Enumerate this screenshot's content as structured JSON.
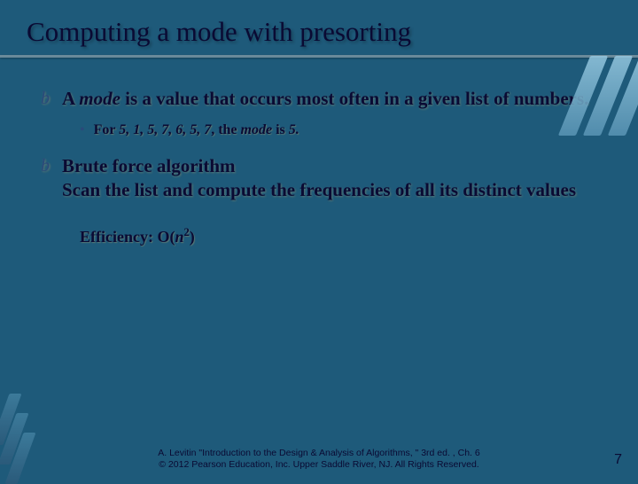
{
  "colors": {
    "background": "#1e5a7a",
    "text": "#0a0a33",
    "accent": "#6a8a9a",
    "deco_light": "#95c8e0",
    "deco_dark": "#2a5a7a"
  },
  "title": "Computing a mode with presorting",
  "bullets": [
    {
      "text_pre": "A ",
      "text_em": "mode",
      "text_post": " is a value that occurs most often in a given list of numbers.",
      "sub": {
        "pre": "For ",
        "list": "5, 1, 5, 7, 6, 5, 7",
        "mid": ", the ",
        "em": "mode",
        "post": " is ",
        "val": "5."
      }
    },
    {
      "line1": "Brute force algorithm",
      "line2": "Scan the list and compute the frequencies of all its distinct values"
    }
  ],
  "efficiency": {
    "label": "Efficiency: O(",
    "var": "n",
    "exp": "2",
    "close": ")"
  },
  "footer": {
    "line1": "A. Levitin \"Introduction to the Design & Analysis of Algorithms, \" 3rd ed. , Ch. 6",
    "line2": "© 2012 Pearson Education, Inc. Upper Saddle River, NJ. All Rights Reserved."
  },
  "page_number": "7"
}
